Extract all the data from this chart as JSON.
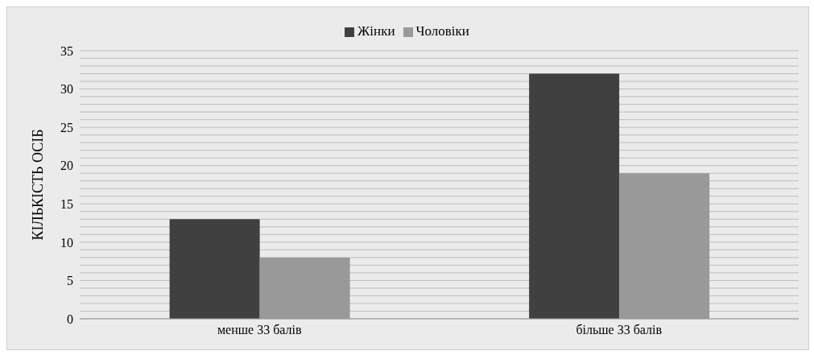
{
  "chart_data": {
    "type": "bar",
    "categories": [
      "менше 33 балів",
      "більше 33 балів"
    ],
    "ylabel": "КІЛЬКІСТЬ ОСІБ",
    "series": [
      {
        "name": "Жінки",
        "color": "#404040",
        "values": [
          13,
          32
        ]
      },
      {
        "name": "Чоловіки",
        "color": "#999999",
        "values": [
          8,
          19
        ]
      }
    ],
    "ylim": [
      0,
      35
    ],
    "yticks": [
      0,
      {
        "value": 1,
        "label": null
      },
      {
        "value": 2,
        "label": null
      },
      {
        "value": 3,
        "label": null
      },
      {
        "value": 4,
        "label": null
      },
      5,
      {
        "value": 6,
        "label": null
      },
      {
        "value": 7,
        "label": null
      },
      {
        "value": 8,
        "label": null
      },
      {
        "value": 9,
        "label": null
      },
      10,
      {
        "value": 11,
        "label": null
      },
      {
        "value": 12,
        "label": null
      },
      {
        "value": 13,
        "label": null
      },
      {
        "value": 14,
        "label": null
      },
      15,
      {
        "value": 16,
        "label": null
      },
      {
        "value": 17,
        "label": null
      },
      {
        "value": 18,
        "label": null
      },
      {
        "value": 19,
        "label": null
      },
      20,
      {
        "value": 21,
        "label": null
      },
      {
        "value": 22,
        "label": null
      },
      {
        "value": 23,
        "label": null
      },
      {
        "value": 24,
        "label": null
      },
      25,
      {
        "value": 26,
        "label": null
      },
      {
        "value": 27,
        "label": null
      },
      {
        "value": 28,
        "label": null
      },
      {
        "value": 29,
        "label": null
      },
      30,
      {
        "value": 31,
        "label": null
      },
      {
        "value": 32,
        "label": null
      },
      {
        "value": 33,
        "label": null
      },
      {
        "value": 34,
        "label": null
      },
      35
    ],
    "grid": "y",
    "legend": "top"
  }
}
